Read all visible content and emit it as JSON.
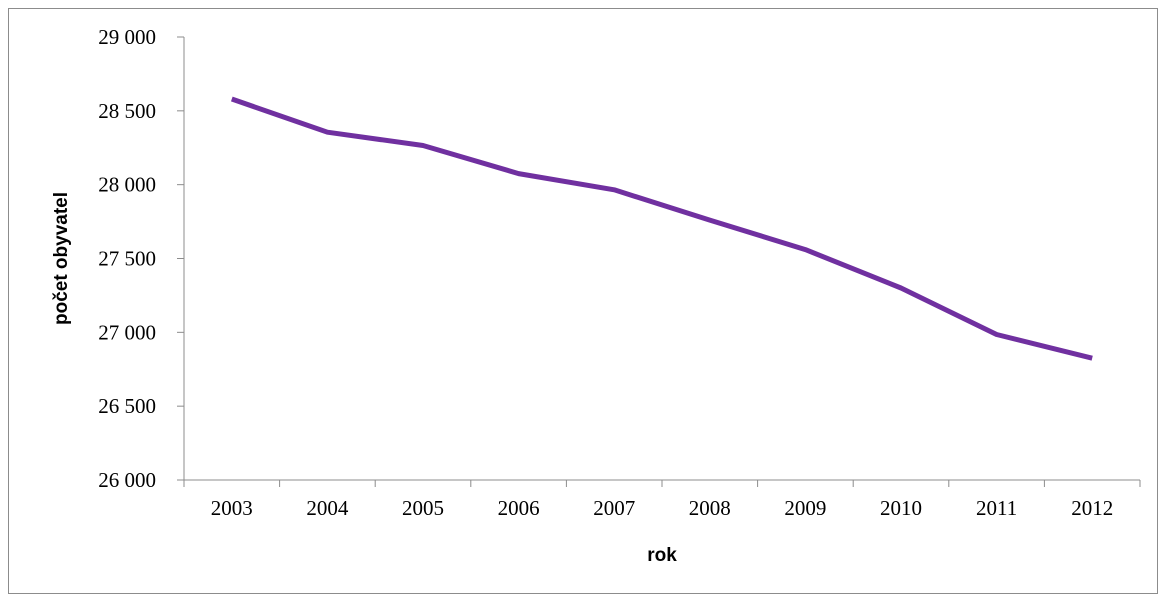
{
  "chart_data": {
    "type": "line",
    "title": "",
    "xlabel": "rok",
    "ylabel": "počet obyvatel",
    "categories": [
      "2003",
      "2004",
      "2005",
      "2006",
      "2007",
      "2008",
      "2009",
      "2010",
      "2011",
      "2012"
    ],
    "series": [
      {
        "values": [
          28580,
          28355,
          28265,
          28075,
          27965,
          27760,
          27560,
          27300,
          26985,
          26825
        ],
        "color": "#7030a0"
      }
    ],
    "ylim": [
      26000,
      29000
    ],
    "yticks": [
      26000,
      26500,
      27000,
      27500,
      28000,
      28500,
      29000
    ],
    "ytick_labels": [
      "26 000",
      "26 500",
      "27 000",
      "27 500",
      "28 000",
      "28 500",
      "29 000"
    ],
    "grid": false,
    "legend": "none"
  }
}
